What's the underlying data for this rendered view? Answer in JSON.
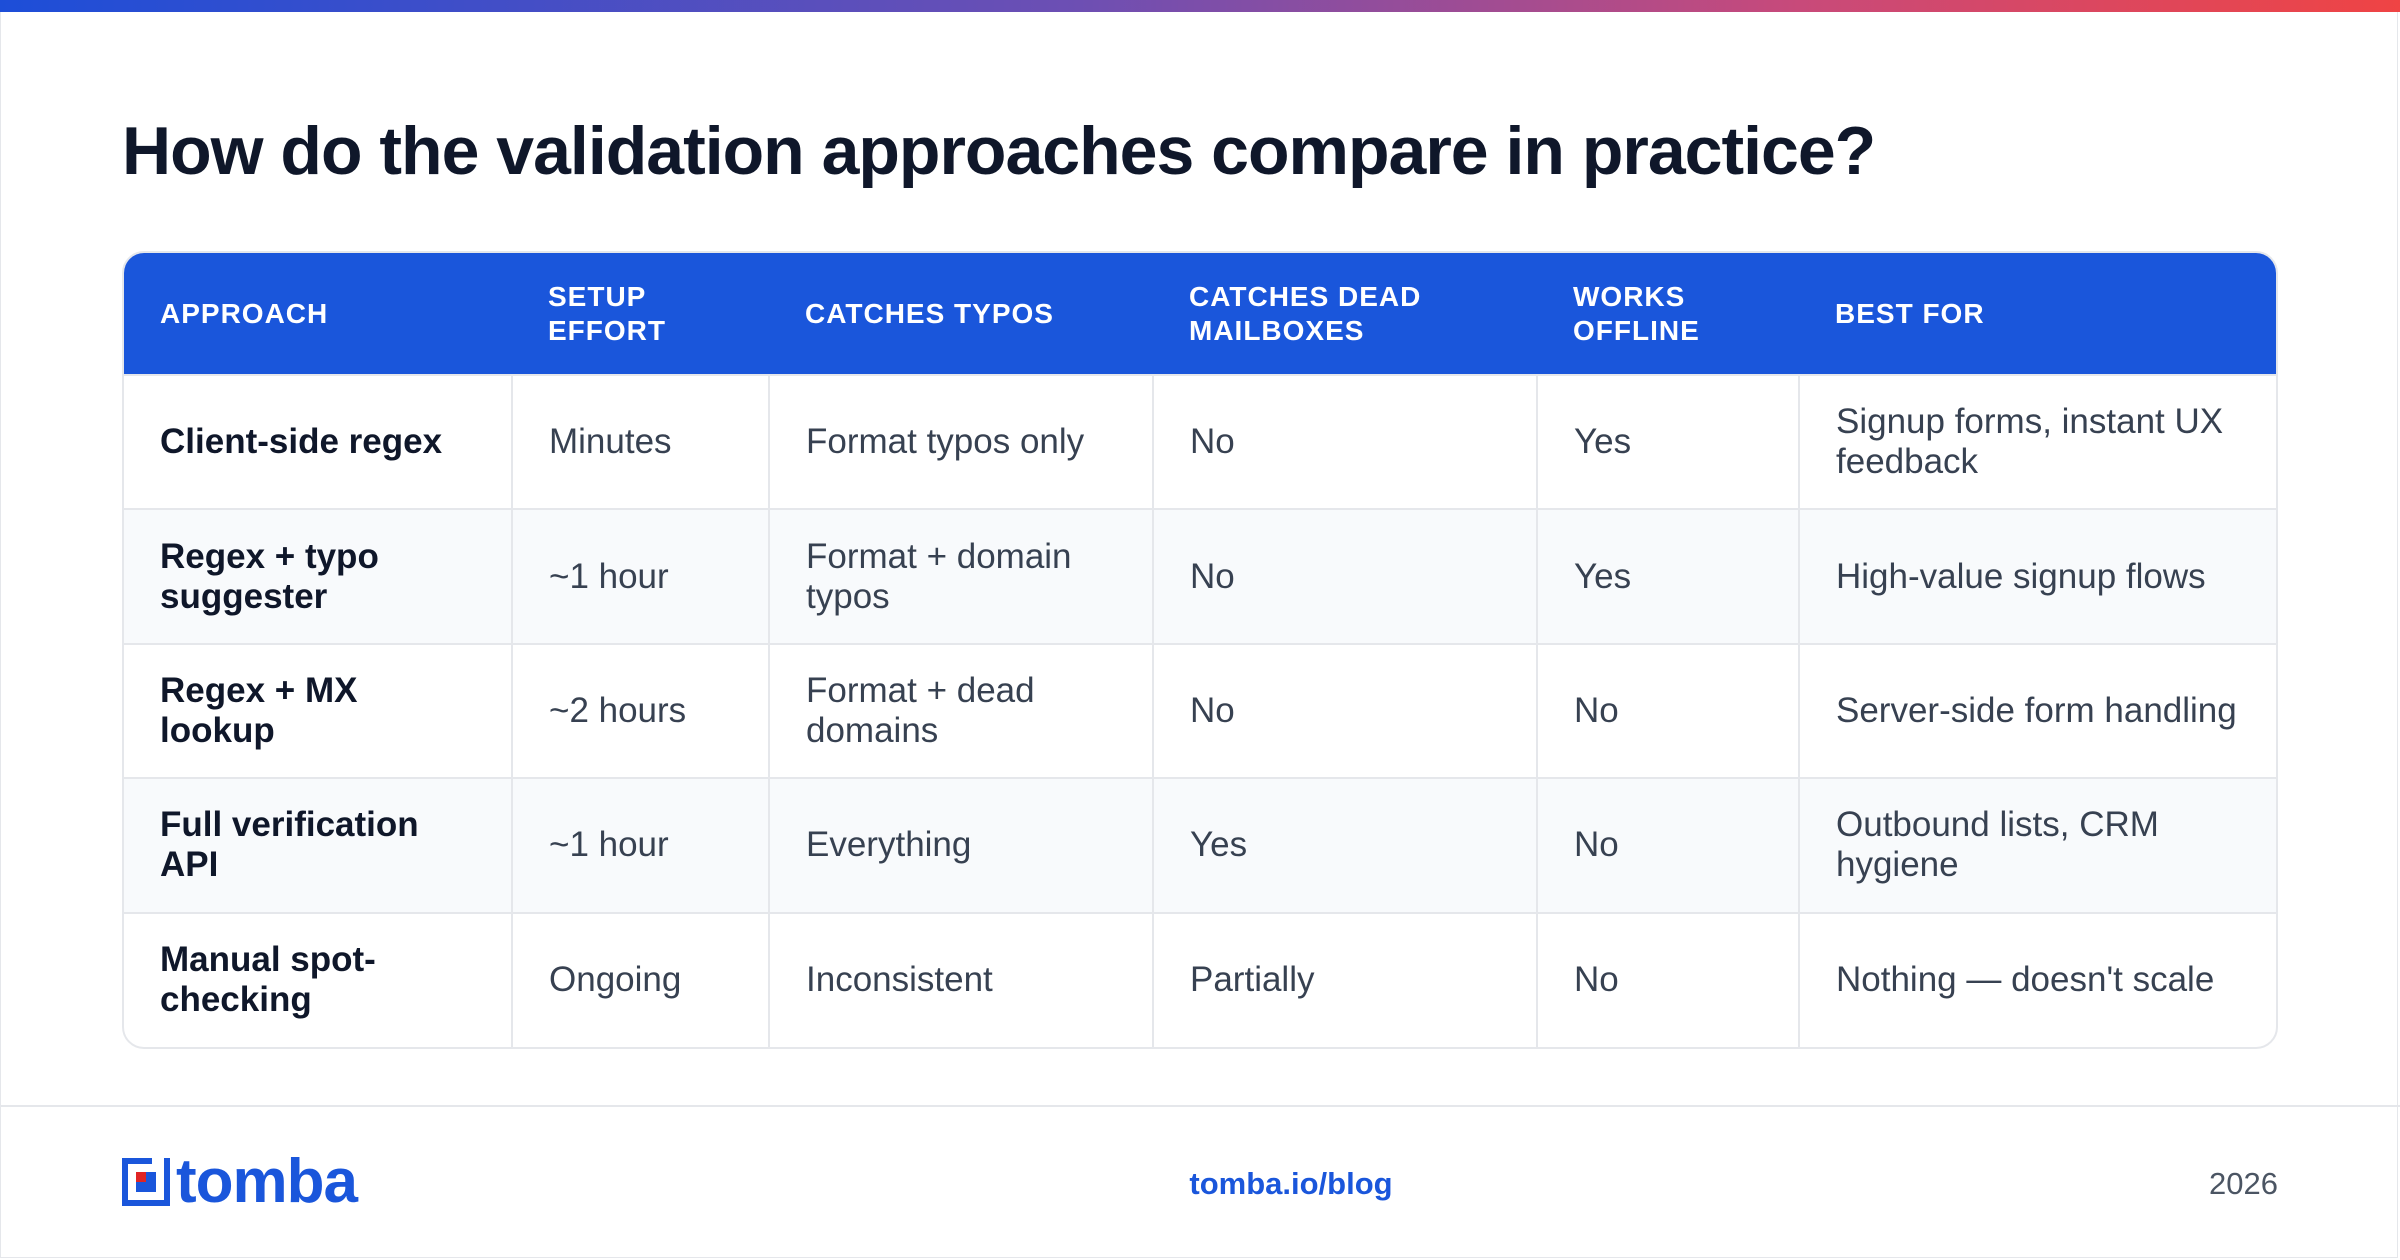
{
  "title": "How do the validation approaches compare in practice?",
  "table": {
    "columns": [
      "APPROACH",
      "SETUP EFFORT",
      "CATCHES TYPOS",
      "CATCHES DEAD MAILBOXES",
      "WORKS OFFLINE",
      "BEST FOR"
    ],
    "rows": [
      [
        "Client-side regex",
        "Minutes",
        "Format typos only",
        "No",
        "Yes",
        "Signup forms, instant UX feedback"
      ],
      [
        "Regex + typo suggester",
        "~1 hour",
        "Format + domain typos",
        "No",
        "Yes",
        "High-value signup flows"
      ],
      [
        "Regex + MX lookup",
        "~2 hours",
        "Format + dead domains",
        "No",
        "No",
        "Server-side form handling"
      ],
      [
        "Full verification API",
        "~1 hour",
        "Everything",
        "Yes",
        "No",
        "Outbound lists, CRM hygiene"
      ],
      [
        "Manual spot-checking",
        "Ongoing",
        "Inconsistent",
        "Partially",
        "No",
        "Nothing — doesn't scale"
      ]
    ]
  },
  "footer": {
    "logo_text": "tomba",
    "link": "tomba.io/blog",
    "year": "2026"
  },
  "colors": {
    "header_bg": "#1a56db",
    "brand_blue": "#1a56db",
    "logo_accent": "#e02424",
    "title": "#0f172a"
  },
  "icons": {
    "logo": "tomba-logo-icon"
  }
}
